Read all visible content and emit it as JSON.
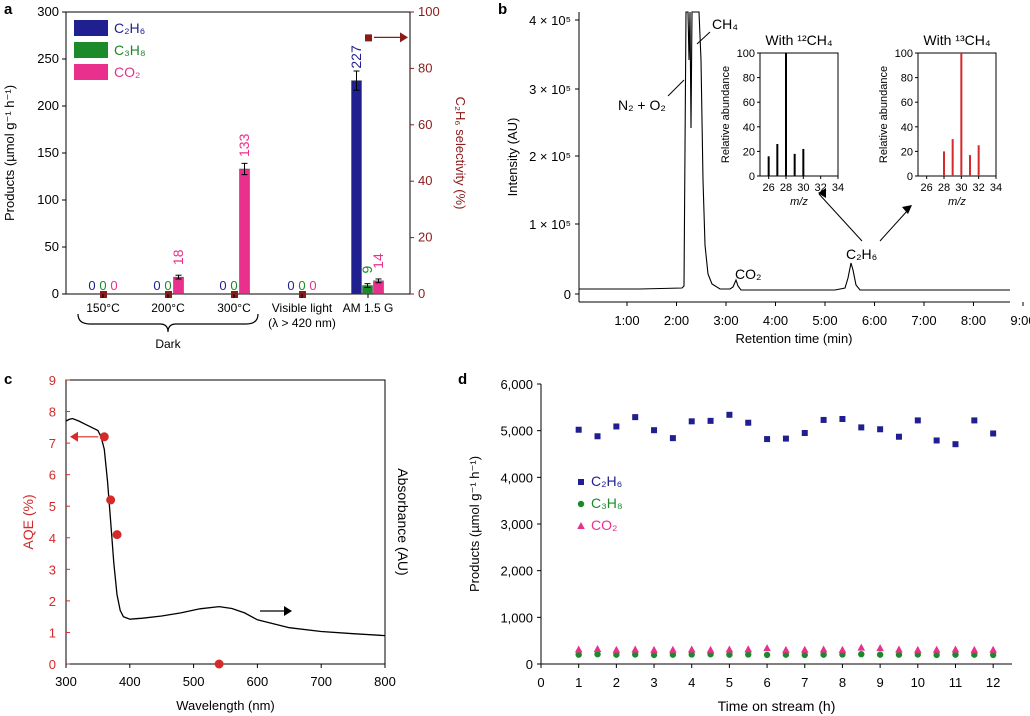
{
  "panels": {
    "a": "a",
    "b": "b",
    "c": "c",
    "d": "d"
  },
  "colors": {
    "c2h6": "#1f1f8f",
    "c3h8": "#1a8a2a",
    "co2": "#e8308c",
    "selectivity": "#8b1a1a",
    "aqe": "#d42a2a",
    "label13": "#d42a2a",
    "black": "#000000"
  },
  "chart_data": [
    {
      "id": "a",
      "type": "bar",
      "ylabel_left": "Products (µmol g⁻¹ h⁻¹)",
      "ylabel_right": "C₂H₆ selectivity (%)",
      "ylim_left": [
        0,
        300
      ],
      "yticks_left": [
        "0",
        "50",
        "100",
        "150",
        "200",
        "250",
        "300"
      ],
      "ylim_right": [
        0,
        100
      ],
      "yticks_right": [
        "0",
        "20",
        "40",
        "60",
        "80",
        "100"
      ],
      "categories": [
        "150°C",
        "200°C",
        "300°C",
        "Visible light",
        "AM 1.5 G"
      ],
      "category_sublabels": [
        "",
        "",
        "",
        "(λ > 420 nm)",
        ""
      ],
      "group_label": "Dark",
      "legend": [
        "C₂H₆",
        "C₃H₈",
        "CO₂"
      ],
      "series": [
        {
          "name": "C₂H₆",
          "values": [
            0,
            0,
            0,
            0,
            227
          ],
          "labels": [
            "0",
            "0",
            "0",
            "0",
            "227"
          ]
        },
        {
          "name": "C₃H₈",
          "values": [
            0,
            0,
            0,
            0,
            9
          ],
          "labels": [
            "0",
            "0",
            "0",
            "0",
            "9"
          ]
        },
        {
          "name": "CO₂",
          "values": [
            0,
            18,
            133,
            0,
            14
          ],
          "labels": [
            "0",
            "18",
            "133",
            "0",
            "14"
          ]
        }
      ],
      "selectivity": [
        0,
        0,
        0,
        0,
        91
      ]
    },
    {
      "id": "b",
      "type": "line",
      "xlabel": "Retention time (min)",
      "ylabel": "Intensity (AU)",
      "xticks": [
        "1:00",
        "2:00",
        "3:00",
        "4:00",
        "5:00",
        "6:00",
        "7:00",
        "8:00",
        "9:00"
      ],
      "yticks": [
        "0",
        "1 × 10⁵",
        "2 × 10⁵",
        "3 × 10⁵",
        "4 × 10⁵"
      ],
      "peak_labels": [
        "N₂ + O₂",
        "CH₄",
        "CO₂",
        "C₂H₆"
      ],
      "insets": [
        {
          "title": "With ¹²CH₄",
          "xlabel": "m/z",
          "ylabel": "Relative abundance",
          "xticks": [
            "26",
            "28",
            "30",
            "32",
            "34"
          ],
          "yticks": [
            "0",
            "20",
            "40",
            "60",
            "80",
            "100"
          ],
          "mz": [
            26,
            27,
            28,
            29,
            30
          ],
          "abundance": [
            16,
            26,
            100,
            18,
            22
          ]
        },
        {
          "title": "With ¹³CH₄",
          "xlabel": "m/z",
          "ylabel": "Relative abundance",
          "xticks": [
            "26",
            "28",
            "30",
            "32",
            "34"
          ],
          "yticks": [
            "0",
            "20",
            "40",
            "60",
            "80",
            "100"
          ],
          "mz": [
            28,
            29,
            30,
            31,
            32
          ],
          "abundance": [
            20,
            30,
            100,
            17,
            25
          ]
        }
      ]
    },
    {
      "id": "c",
      "type": "line",
      "xlabel": "Wavelength (nm)",
      "ylabel_left": "AQE (%)",
      "ylabel_right": "Absorbance (AU)",
      "xlim": [
        300,
        800
      ],
      "ylim": [
        0,
        9
      ],
      "xticks": [
        "300",
        "400",
        "500",
        "600",
        "700",
        "800"
      ],
      "yticks": [
        "0",
        "1",
        "2",
        "3",
        "4",
        "5",
        "6",
        "7",
        "8",
        "9"
      ],
      "aqe_points": {
        "x": [
          360,
          370,
          380,
          540
        ],
        "y": [
          7.2,
          5.2,
          4.1,
          0
        ]
      },
      "absorbance": {
        "x": [
          300,
          305,
          310,
          320,
          330,
          340,
          350,
          355,
          360,
          365,
          370,
          375,
          380,
          385,
          390,
          400,
          420,
          450,
          480,
          510,
          540,
          560,
          580,
          600,
          650,
          700,
          750,
          800
        ],
        "y": [
          7.7,
          7.75,
          7.78,
          7.7,
          7.6,
          7.5,
          7.4,
          7.2,
          6.8,
          5.8,
          4.5,
          3.2,
          2.2,
          1.7,
          1.5,
          1.42,
          1.45,
          1.52,
          1.62,
          1.75,
          1.82,
          1.76,
          1.62,
          1.4,
          1.15,
          1.03,
          0.96,
          0.9
        ]
      }
    },
    {
      "id": "d",
      "type": "scatter",
      "xlabel": "Time on stream (h)",
      "ylabel": "Products (µmol g⁻¹ h⁻¹)",
      "xlim": [
        0,
        12.5
      ],
      "ylim": [
        0,
        6000
      ],
      "xticks": [
        "0",
        "1",
        "2",
        "3",
        "4",
        "5",
        "6",
        "7",
        "8",
        "9",
        "10",
        "11",
        "12"
      ],
      "yticks": [
        "0",
        "1,000",
        "2,000",
        "3,000",
        "4,000",
        "5,000",
        "6,000"
      ],
      "legend": [
        "C₂H₆",
        "C₃H₈",
        "CO₂"
      ],
      "x": [
        1,
        1.5,
        2,
        2.5,
        3,
        3.5,
        4,
        4.5,
        5,
        5.5,
        6,
        6.5,
        7,
        7.5,
        8,
        8.5,
        9,
        9.5,
        10,
        10.5,
        11,
        11.5,
        12
      ],
      "series": [
        {
          "name": "C₂H₆",
          "values": [
            5020,
            4880,
            5090,
            5290,
            5010,
            4840,
            5200,
            5210,
            5340,
            5170,
            4820,
            4830,
            4950,
            5230,
            5250,
            5070,
            5030,
            4870,
            5220,
            4790,
            4710,
            5220,
            4940
          ]
        },
        {
          "name": "C₃H₈",
          "values": [
            200,
            210,
            200,
            205,
            195,
            200,
            205,
            210,
            200,
            205,
            195,
            200,
            195,
            200,
            205,
            210,
            200,
            200,
            205,
            195,
            200,
            200,
            195
          ]
        },
        {
          "name": "CO₂",
          "values": [
            290,
            300,
            280,
            290,
            280,
            285,
            290,
            280,
            290,
            295,
            320,
            280,
            285,
            290,
            280,
            330,
            320,
            290,
            280,
            285,
            290,
            280,
            285
          ]
        }
      ]
    }
  ]
}
